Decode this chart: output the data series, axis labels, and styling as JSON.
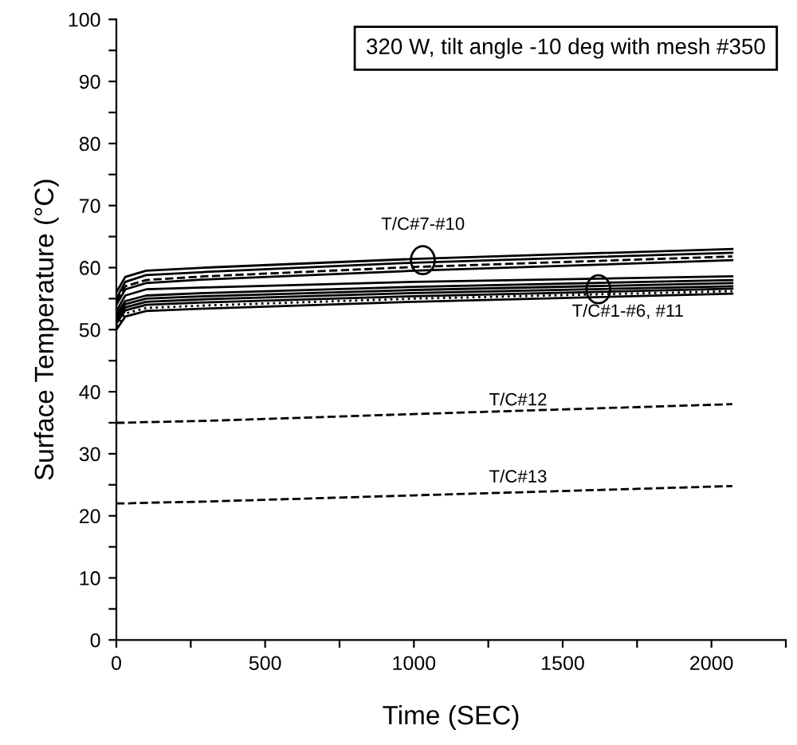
{
  "chart_data": {
    "type": "line",
    "xlabel": "Time (SEC)",
    "ylabel": "Surface Temperature (°C)",
    "x": [
      0,
      30,
      100,
      300,
      1000,
      2070
    ],
    "series": [
      {
        "color": "#000000",
        "line_style": "solid",
        "values": [
          56,
          58.5,
          59.5,
          60.0,
          61.4,
          63
        ]
      },
      {
        "color": "#000000",
        "line_style": "solid",
        "values": [
          55,
          57.7,
          58.8,
          59.3,
          60.8,
          62.4
        ]
      },
      {
        "color": "#000000",
        "line_style": "dashed",
        "values": [
          54.5,
          57.0,
          58.0,
          58.6,
          60.1,
          61.8
        ]
      },
      {
        "color": "#000000",
        "line_style": "solid",
        "values": [
          54,
          56.5,
          57.5,
          58.1,
          59.5,
          61.2
        ]
      },
      {
        "color": "#000000",
        "line_style": "solid",
        "values": [
          53,
          55.5,
          56.5,
          56.8,
          57.7,
          58.6
        ]
      },
      {
        "color": "#000000",
        "line_style": "solid",
        "values": [
          52.5,
          54.6,
          55.5,
          55.9,
          56.9,
          58.0
        ]
      },
      {
        "color": "#000000",
        "line_style": "solid",
        "values": [
          52,
          54.1,
          55,
          55.4,
          56.4,
          57.5
        ]
      },
      {
        "color": "#000000",
        "line_style": "solid",
        "values": [
          51.5,
          53.6,
          54.5,
          54.9,
          55.9,
          57.0
        ]
      },
      {
        "color": "#000000",
        "line_style": "solid",
        "values": [
          51,
          53.1,
          54,
          54.4,
          55.4,
          56.6
        ]
      },
      {
        "color": "#000000",
        "line_style": "dotted",
        "values": [
          50.5,
          52.6,
          53.5,
          53.9,
          55.0,
          56.2
        ]
      },
      {
        "color": "#000000",
        "line_style": "solid",
        "values": [
          50,
          52.1,
          53,
          53.4,
          54.5,
          55.8
        ]
      },
      {
        "color": "#000000",
        "line_style": "dashed",
        "values": [
          35,
          35.0,
          35.1,
          35.3,
          36.4,
          38
        ]
      },
      {
        "color": "#000000",
        "line_style": "dashed",
        "values": [
          22,
          22.0,
          22.1,
          22.3,
          23.3,
          24.8
        ]
      }
    ],
    "xlim": [
      0,
      2250
    ],
    "xticks": [
      0,
      {
        "value": 250,
        "label": null
      },
      500,
      {
        "value": 750,
        "label": null
      },
      1000,
      {
        "value": 1250,
        "label": null
      },
      1500,
      {
        "value": 1750,
        "label": null
      },
      2000,
      {
        "value": 2250,
        "label": null
      }
    ],
    "ylim": [
      0,
      100
    ],
    "yticks": [
      0,
      {
        "value": 5,
        "label": null
      },
      10,
      {
        "value": 15,
        "label": null
      },
      20,
      {
        "value": 25,
        "label": null
      },
      30,
      {
        "value": 35,
        "label": null
      },
      40,
      {
        "value": 45,
        "label": null
      },
      50,
      {
        "value": 55,
        "label": null
      },
      60,
      {
        "value": 65,
        "label": null
      },
      70,
      {
        "value": 75,
        "label": null
      },
      80,
      {
        "value": 85,
        "label": null
      },
      90,
      {
        "value": 95,
        "label": null
      },
      100
    ],
    "annotations": [
      "320 W, tilt angle -10 deg with mesh #350",
      "T/C#7-#10",
      "T/C#1-#6, #11",
      {
        "text": "T/C#12",
        "x": 1350,
        "y": 37.2
      },
      {
        "text": "T/C#13",
        "x": 1350,
        "y": 24.8
      }
    ],
    "grid": false,
    "legend": false,
    "marker": "none"
  }
}
